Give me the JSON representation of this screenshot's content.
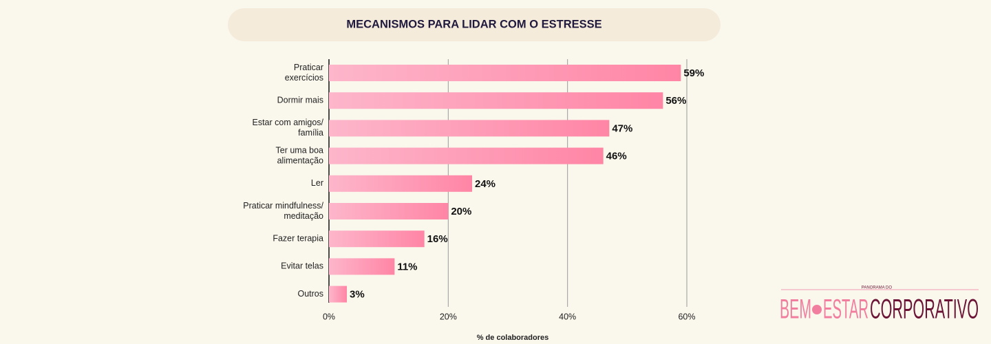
{
  "chart_data": {
    "type": "bar",
    "orientation": "horizontal",
    "title": "MECANISMOS PARA LIDAR COM O ESTRESSE",
    "categories": [
      [
        "Praticar",
        "exercícios"
      ],
      [
        "Dormir mais"
      ],
      [
        "Estar com amigos/",
        "família"
      ],
      [
        "Ter uma boa",
        "alimentação"
      ],
      [
        "Ler"
      ],
      [
        "Praticar mindfulness/",
        "meditação"
      ],
      [
        "Fazer terapia"
      ],
      [
        "Evitar telas"
      ],
      [
        "Outros"
      ]
    ],
    "values": [
      59,
      56,
      47,
      46,
      24,
      20,
      16,
      11,
      3
    ],
    "value_labels": [
      "59%",
      "56%",
      "47%",
      "46%",
      "24%",
      "20%",
      "16%",
      "11%",
      "3%"
    ],
    "color": "#ff85a5",
    "xlabel": "% de colaboradores",
    "xlim": [
      0,
      60
    ],
    "xticks": [
      {
        "value": 0,
        "label": "0%"
      },
      {
        "value": 20,
        "label": "20%"
      },
      {
        "value": 40,
        "label": "40%"
      },
      {
        "value": 60,
        "label": "60%"
      }
    ],
    "grid": true
  },
  "logo": {
    "top": "PANORAMA DO",
    "left": "BEM",
    "middle": "ESTAR",
    "right": "CORPORATIVO"
  }
}
